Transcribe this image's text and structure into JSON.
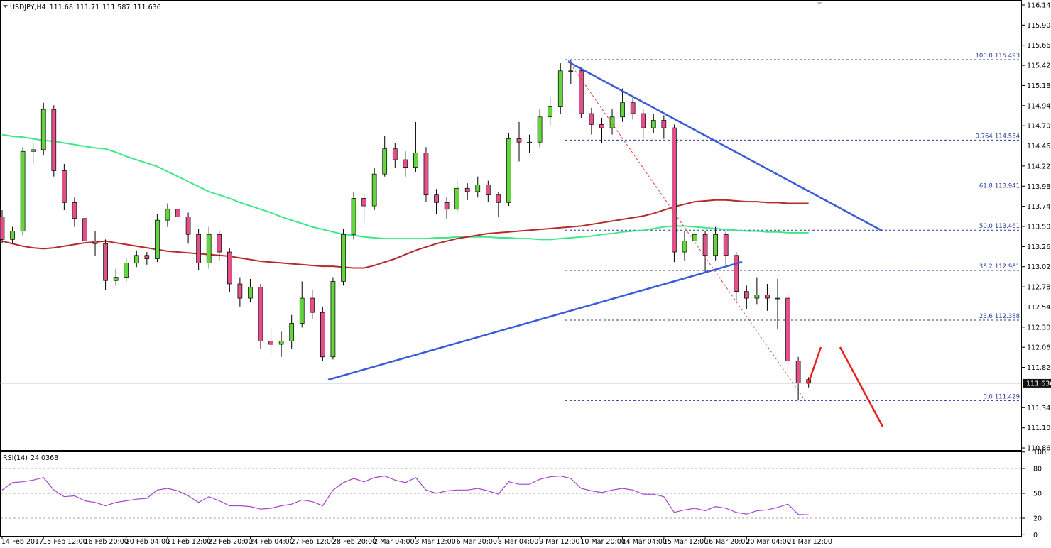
{
  "chart_data": [
    {
      "type": "candlestick",
      "symbol": "USDJPY,H4",
      "categories": [
        "14 Feb 2017",
        null,
        null,
        null,
        "15 Feb 12:00",
        null,
        null,
        null,
        "16 Feb 20:00",
        null,
        null,
        null,
        "20 Feb 04:00",
        null,
        null,
        null,
        "21 Feb 12:00",
        null,
        null,
        null,
        "22 Feb 20:00",
        null,
        null,
        null,
        "24 Feb 04:00",
        null,
        null,
        null,
        "27 Feb 12:00",
        null,
        null,
        null,
        "28 Feb 20:00",
        null,
        null,
        null,
        "2 Mar 04:00",
        null,
        null,
        null,
        "3 Mar 12:00",
        null,
        null,
        null,
        "6 Mar 20:00",
        null,
        null,
        null,
        "8 Mar 04:00",
        null,
        null,
        null,
        "9 Mar 12:00",
        null,
        null,
        null,
        "10 Mar 20:00",
        null,
        null,
        null,
        "14 Mar 04:00",
        null,
        null,
        null,
        "15 Mar 12:00",
        null,
        null,
        null,
        "16 Mar 20:00",
        null,
        null,
        null,
        "20 Mar 04:00",
        null,
        null,
        null,
        "21 Mar 12:00",
        null,
        null
      ],
      "ohlc": [
        [
          113.62,
          113.7,
          113.3,
          113.35
        ],
        [
          113.35,
          113.5,
          113.3,
          113.45
        ],
        [
          113.45,
          114.45,
          113.4,
          114.4
        ],
        [
          114.4,
          114.5,
          114.25,
          114.42
        ],
        [
          114.42,
          114.98,
          114.35,
          114.9
        ],
        [
          114.9,
          114.95,
          114.1,
          114.17
        ],
        [
          114.17,
          114.25,
          113.7,
          113.79
        ],
        [
          113.79,
          113.85,
          113.5,
          113.6
        ],
        [
          113.6,
          113.65,
          113.25,
          113.33
        ],
        [
          113.33,
          113.45,
          113.15,
          113.3
        ],
        [
          113.3,
          113.35,
          112.75,
          112.86
        ],
        [
          112.86,
          113.0,
          112.8,
          112.9
        ],
        [
          112.9,
          113.12,
          112.85,
          113.07
        ],
        [
          113.07,
          113.22,
          113.02,
          113.16
        ],
        [
          113.16,
          113.2,
          113.05,
          113.12
        ],
        [
          113.12,
          113.65,
          113.08,
          113.58
        ],
        [
          113.58,
          113.78,
          113.5,
          113.71
        ],
        [
          113.71,
          113.75,
          113.55,
          113.62
        ],
        [
          113.62,
          113.67,
          113.3,
          113.41
        ],
        [
          113.41,
          113.48,
          112.98,
          113.07
        ],
        [
          113.07,
          113.5,
          113.0,
          113.41
        ],
        [
          113.41,
          113.45,
          113.1,
          113.2
        ],
        [
          113.2,
          113.25,
          112.72,
          112.82
        ],
        [
          112.82,
          112.9,
          112.55,
          112.65
        ],
        [
          112.65,
          112.88,
          112.6,
          112.78
        ],
        [
          112.78,
          112.82,
          112.05,
          112.14
        ],
        [
          112.14,
          112.3,
          111.98,
          112.1
        ],
        [
          112.1,
          112.25,
          111.95,
          112.14
        ],
        [
          112.14,
          112.45,
          112.05,
          112.35
        ],
        [
          112.35,
          112.85,
          112.3,
          112.65
        ],
        [
          112.65,
          112.75,
          112.4,
          112.48
        ],
        [
          112.48,
          112.55,
          111.9,
          111.95
        ],
        [
          111.95,
          112.9,
          111.92,
          112.85
        ],
        [
          112.85,
          113.48,
          112.8,
          113.41
        ],
        [
          113.41,
          113.92,
          113.35,
          113.84
        ],
        [
          113.84,
          113.9,
          113.55,
          113.75
        ],
        [
          113.75,
          114.2,
          113.7,
          114.13
        ],
        [
          114.13,
          114.58,
          114.1,
          114.43
        ],
        [
          114.43,
          114.5,
          114.2,
          114.3
        ],
        [
          114.3,
          114.4,
          114.1,
          114.21
        ],
        [
          114.21,
          114.75,
          114.15,
          114.38
        ],
        [
          114.38,
          114.45,
          113.8,
          113.88
        ],
        [
          113.88,
          113.95,
          113.65,
          113.79
        ],
        [
          113.79,
          113.85,
          113.6,
          113.71
        ],
        [
          113.71,
          114.05,
          113.68,
          113.96
        ],
        [
          113.96,
          114.02,
          113.82,
          113.92
        ],
        [
          113.92,
          114.1,
          113.85,
          114.0
        ],
        [
          114.0,
          114.05,
          113.8,
          113.88
        ],
        [
          113.88,
          113.92,
          113.62,
          113.79
        ],
        [
          113.79,
          114.62,
          113.75,
          114.55
        ],
        [
          114.55,
          114.75,
          114.28,
          114.51
        ],
        [
          114.51,
          114.6,
          114.38,
          114.51
        ],
        [
          114.51,
          114.9,
          114.45,
          114.81
        ],
        [
          114.81,
          115.05,
          114.7,
          114.93
        ],
        [
          114.93,
          115.45,
          114.85,
          115.36
        ],
        [
          115.36,
          115.49,
          115.2,
          115.36
        ],
        [
          115.36,
          115.4,
          114.8,
          114.85
        ],
        [
          114.85,
          114.92,
          114.6,
          114.72
        ],
        [
          114.72,
          114.8,
          114.5,
          114.68
        ],
        [
          114.68,
          114.9,
          114.6,
          114.81
        ],
        [
          114.81,
          115.15,
          114.75,
          114.98
        ],
        [
          114.98,
          115.05,
          114.78,
          114.85
        ],
        [
          114.85,
          114.9,
          114.55,
          114.68
        ],
        [
          114.68,
          114.85,
          114.62,
          114.77
        ],
        [
          114.77,
          114.83,
          114.55,
          114.68
        ],
        [
          114.68,
          114.72,
          113.08,
          113.2
        ],
        [
          113.2,
          113.45,
          113.1,
          113.33
        ],
        [
          113.33,
          113.5,
          113.2,
          113.41
        ],
        [
          113.41,
          113.45,
          112.95,
          113.16
        ],
        [
          113.16,
          113.5,
          113.1,
          113.41
        ],
        [
          113.41,
          113.45,
          113.05,
          113.16
        ],
        [
          113.16,
          113.2,
          112.6,
          112.73
        ],
        [
          112.73,
          112.8,
          112.52,
          112.65
        ],
        [
          112.65,
          112.9,
          112.58,
          112.69
        ],
        [
          112.69,
          112.82,
          112.5,
          112.65
        ],
        [
          112.65,
          112.88,
          112.28,
          112.65
        ],
        [
          112.65,
          112.72,
          111.85,
          111.9
        ],
        [
          111.9,
          111.95,
          111.43,
          111.64
        ],
        [
          111.68,
          111.71,
          111.587,
          111.636
        ]
      ],
      "bull_color": "#62d63c",
      "bear_color": "#e2508a",
      "moving_averages": [
        {
          "color": "#3ee88a",
          "values": [
            114.6,
            114.58,
            114.57,
            114.55,
            114.53,
            114.52,
            114.5,
            114.48,
            114.46,
            114.44,
            114.43,
            114.39,
            114.34,
            114.3,
            114.26,
            114.22,
            114.16,
            114.1,
            114.04,
            113.98,
            113.92,
            113.88,
            113.84,
            113.79,
            113.75,
            113.71,
            113.67,
            113.62,
            113.58,
            113.54,
            113.5,
            113.47,
            113.44,
            113.41,
            113.4,
            113.38,
            113.37,
            113.36,
            113.36,
            113.36,
            113.36,
            113.36,
            113.37,
            113.37,
            113.38,
            113.38,
            113.38,
            113.38,
            113.37,
            113.37,
            113.36,
            113.36,
            113.35,
            113.35,
            113.36,
            113.37,
            113.38,
            113.39,
            113.41,
            113.42,
            113.44,
            113.45,
            113.46,
            113.48,
            113.5,
            113.51,
            113.51,
            113.5,
            113.49,
            113.48,
            113.47,
            113.46,
            113.45,
            113.45,
            113.44,
            113.44,
            113.43,
            113.43,
            113.43
          ]
        },
        {
          "color": "#b52a2a",
          "values": [
            113.33,
            113.3,
            113.27,
            113.25,
            113.24,
            113.25,
            113.27,
            113.29,
            113.31,
            113.32,
            113.33,
            113.31,
            113.29,
            113.27,
            113.25,
            113.23,
            113.21,
            113.2,
            113.19,
            113.18,
            113.17,
            113.16,
            113.15,
            113.13,
            113.11,
            113.09,
            113.08,
            113.07,
            113.06,
            113.05,
            113.04,
            113.03,
            113.03,
            113.02,
            113.01,
            113.01,
            113.04,
            113.08,
            113.12,
            113.17,
            113.22,
            113.26,
            113.3,
            113.33,
            113.36,
            113.38,
            113.4,
            113.42,
            113.43,
            113.44,
            113.45,
            113.46,
            113.47,
            113.48,
            113.49,
            113.5,
            113.51,
            113.53,
            113.55,
            113.57,
            113.59,
            113.61,
            113.63,
            113.66,
            113.7,
            113.74,
            113.77,
            113.8,
            113.81,
            113.82,
            113.82,
            113.81,
            113.8,
            113.8,
            113.79,
            113.79,
            113.78,
            113.78,
            113.78
          ]
        }
      ],
      "fib_levels": [
        {
          "label": "100.0",
          "value": 115.493
        },
        {
          "label": "0.764",
          "value": 114.534
        },
        {
          "label": "61.8",
          "value": 113.941
        },
        {
          "label": "50.0",
          "value": 113.461
        },
        {
          "label": "38.2",
          "value": 112.981
        },
        {
          "label": "23.6",
          "value": 112.388
        },
        {
          "label": "0.0",
          "value": 111.429
        }
      ],
      "ylim": [
        110.84,
        116.204
      ],
      "yticks": [
        116.145,
        115.905,
        115.665,
        115.425,
        115.185,
        114.945,
        114.705,
        114.465,
        114.225,
        113.985,
        113.745,
        113.505,
        113.265,
        113.025,
        112.785,
        112.545,
        112.305,
        112.065,
        111.825,
        111.345,
        111.105,
        110.865
      ]
    },
    {
      "type": "line",
      "title": "RSI(14)",
      "color": "#a645cc",
      "values": [
        54,
        63,
        64,
        66,
        69,
        54,
        46,
        47,
        41,
        39,
        35,
        39,
        41,
        43,
        44,
        54,
        56,
        53,
        47,
        39,
        46,
        41,
        35,
        35,
        34,
        31,
        32,
        35,
        37,
        42,
        40,
        35,
        54,
        63,
        68,
        64,
        69,
        71,
        66,
        63,
        69,
        54,
        50,
        53,
        54,
        54,
        56,
        53,
        49,
        64,
        61,
        61,
        67,
        70,
        71,
        68,
        56,
        53,
        51,
        54,
        56,
        54,
        49,
        49,
        46,
        27,
        30,
        32,
        29,
        34,
        32,
        27,
        25,
        29,
        30,
        33,
        37,
        24.5,
        24.0368
      ],
      "ylim": [
        0,
        100
      ],
      "yticks": [
        0,
        20,
        50,
        80,
        100
      ]
    }
  ]
}
